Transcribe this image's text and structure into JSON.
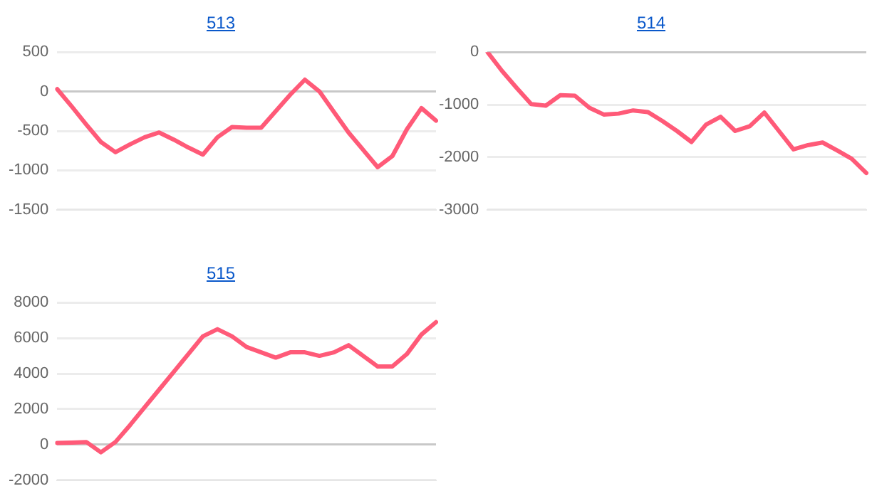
{
  "chart_data": [
    {
      "type": "line",
      "title": "513",
      "categories": [
        null,
        null,
        null,
        null,
        null,
        null,
        null,
        null,
        null,
        null,
        null,
        null,
        null,
        null,
        null,
        null,
        null,
        null,
        null,
        null,
        null,
        null,
        null,
        null,
        null,
        null,
        null
      ],
      "series": [
        {
          "color": "#ff5a78",
          "values": [
            30,
            -190,
            -420,
            -640,
            -770,
            -670,
            -580,
            -520,
            -610,
            -710,
            -800,
            -580,
            -450,
            -460,
            -460,
            -250,
            -40,
            150,
            0,
            -260,
            -520,
            -740,
            -960,
            -820,
            -480,
            -210,
            -370
          ]
        }
      ],
      "ylim": [
        -1500,
        500
      ],
      "yticks": [
        -1500,
        -1000,
        -500,
        0,
        500
      ],
      "grid": "y",
      "tick_labels": "y",
      "marker": "none",
      "line_style": "solid"
    },
    {
      "type": "line",
      "title": "514",
      "categories": [
        null,
        null,
        null,
        null,
        null,
        null,
        null,
        null,
        null,
        null,
        null,
        null,
        null,
        null,
        null,
        null,
        null,
        null,
        null,
        null,
        null,
        null,
        null,
        null,
        null,
        null,
        null
      ],
      "series": [
        {
          "color": "#ff5a78",
          "values": [
            0,
            -360,
            -680,
            -990,
            -1020,
            -820,
            -830,
            -1060,
            -1190,
            -1170,
            -1110,
            -1140,
            -1310,
            -1500,
            -1710,
            -1380,
            -1230,
            -1500,
            -1410,
            -1150,
            -1500,
            -1850,
            -1770,
            -1720,
            -1870,
            -2030,
            -2300
          ]
        }
      ],
      "ylim": [
        -3000,
        0
      ],
      "yticks": [
        -3000,
        -2000,
        -1000,
        0
      ],
      "grid": "y",
      "tick_labels": "y",
      "marker": "none",
      "line_style": "solid"
    },
    {
      "type": "line",
      "title": "515",
      "categories": [
        null,
        null,
        null,
        null,
        null,
        null,
        null,
        null,
        null,
        null,
        null,
        null,
        null,
        null,
        null,
        null,
        null,
        null,
        null,
        null,
        null,
        null,
        null,
        null,
        null,
        null,
        null
      ],
      "series": [
        {
          "color": "#ff5a78",
          "values": [
            100,
            120,
            150,
            -430,
            150,
            1100,
            2100,
            3100,
            4100,
            5100,
            6100,
            6500,
            6100,
            5500,
            5200,
            4900,
            5200,
            5200,
            5000,
            5200,
            5600,
            5000,
            4400,
            4400,
            5100,
            6200,
            6900
          ]
        }
      ],
      "ylim": [
        -2000,
        8000
      ],
      "yticks": [
        -2000,
        0,
        2000,
        4000,
        6000,
        8000
      ],
      "grid": "y",
      "tick_labels": "y",
      "marker": "none",
      "line_style": "solid"
    }
  ]
}
